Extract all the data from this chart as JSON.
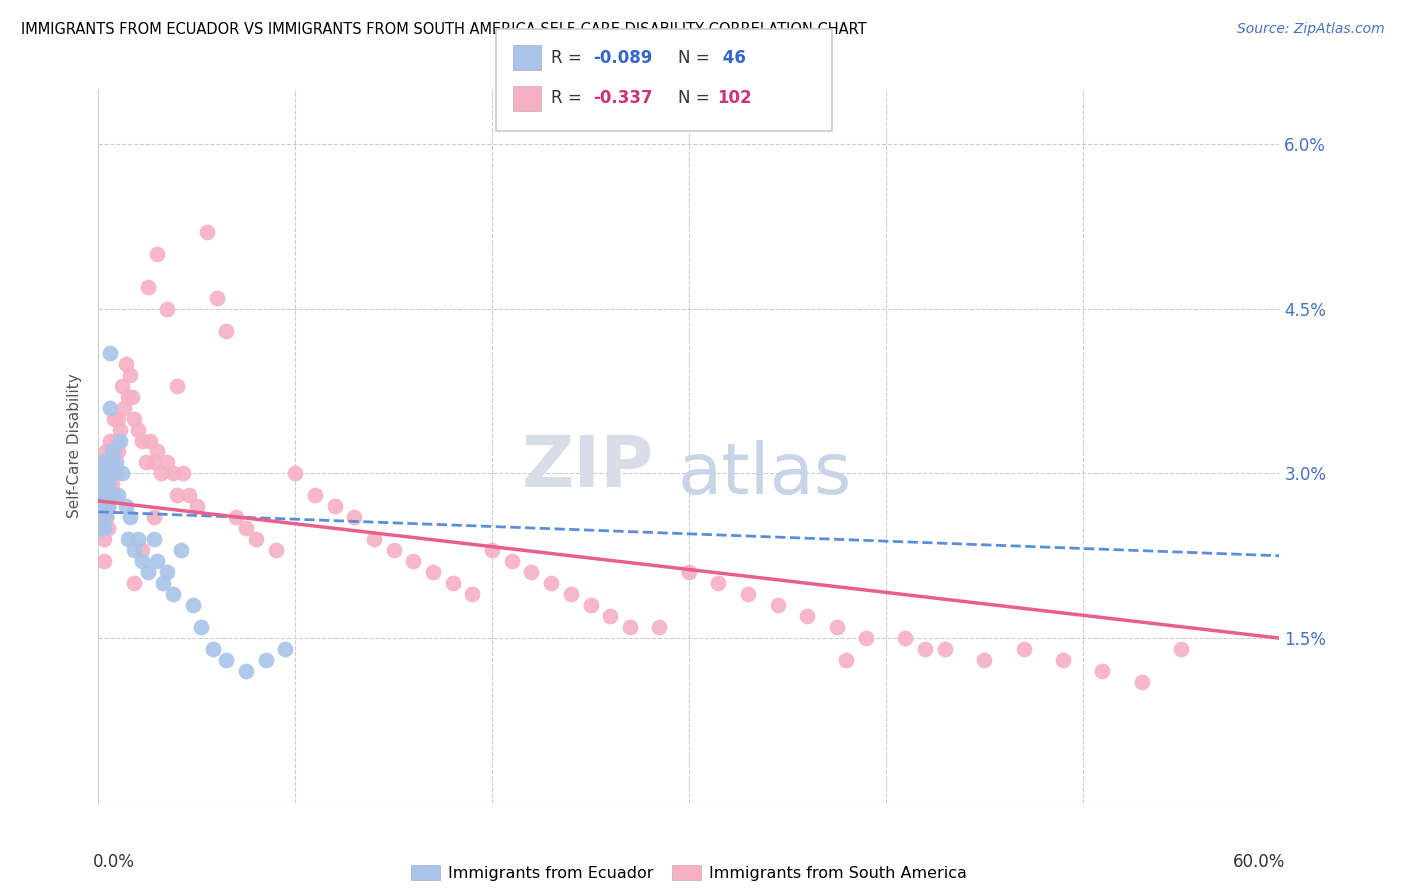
{
  "title": "IMMIGRANTS FROM ECUADOR VS IMMIGRANTS FROM SOUTH AMERICA SELF-CARE DISABILITY CORRELATION CHART",
  "source": "Source: ZipAtlas.com",
  "ylabel": "Self-Care Disability",
  "yticks": [
    0.0,
    0.015,
    0.03,
    0.045,
    0.06
  ],
  "ytick_labels": [
    "",
    "1.5%",
    "3.0%",
    "4.5%",
    "6.0%"
  ],
  "xlim": [
    0.0,
    0.6
  ],
  "ylim": [
    0.0,
    0.065
  ],
  "watermark_zip": "ZIP",
  "watermark_atlas": "atlas",
  "ecuador_color": "#a8c4e8",
  "south_america_color": "#f5b0c5",
  "ecuador_trend_color": "#5b8ed6",
  "south_america_trend_color": "#e8608a",
  "ecuador_label": "Immigrants from Ecuador",
  "sa_label": "Immigrants from South America",
  "legend_r1_prefix": "R = ",
  "legend_r1_val": "-0.089",
  "legend_n1_prefix": "N = ",
  "legend_n1_val": " 46",
  "legend_r2_prefix": "R = ",
  "legend_r2_val": "-0.337",
  "legend_n2_prefix": "N = ",
  "legend_n2_val": "102",
  "ecuador_x": [
    0.001,
    0.001,
    0.002,
    0.002,
    0.002,
    0.002,
    0.003,
    0.003,
    0.003,
    0.003,
    0.004,
    0.004,
    0.004,
    0.005,
    0.005,
    0.005,
    0.006,
    0.006,
    0.007,
    0.007,
    0.008,
    0.008,
    0.009,
    0.01,
    0.011,
    0.012,
    0.014,
    0.015,
    0.016,
    0.018,
    0.02,
    0.022,
    0.025,
    0.028,
    0.03,
    0.033,
    0.035,
    0.038,
    0.042,
    0.048,
    0.052,
    0.058,
    0.065,
    0.075,
    0.085,
    0.095
  ],
  "ecuador_y": [
    0.029,
    0.027,
    0.031,
    0.029,
    0.027,
    0.025,
    0.03,
    0.028,
    0.027,
    0.025,
    0.03,
    0.028,
    0.026,
    0.031,
    0.029,
    0.027,
    0.041,
    0.036,
    0.032,
    0.028,
    0.03,
    0.028,
    0.031,
    0.028,
    0.033,
    0.03,
    0.027,
    0.024,
    0.026,
    0.023,
    0.024,
    0.022,
    0.021,
    0.024,
    0.022,
    0.02,
    0.021,
    0.019,
    0.023,
    0.018,
    0.016,
    0.014,
    0.013,
    0.012,
    0.013,
    0.014
  ],
  "sa_x": [
    0.001,
    0.001,
    0.001,
    0.002,
    0.002,
    0.002,
    0.002,
    0.003,
    0.003,
    0.003,
    0.003,
    0.003,
    0.004,
    0.004,
    0.004,
    0.004,
    0.005,
    0.005,
    0.005,
    0.005,
    0.006,
    0.006,
    0.006,
    0.007,
    0.007,
    0.008,
    0.008,
    0.009,
    0.009,
    0.01,
    0.01,
    0.011,
    0.012,
    0.013,
    0.014,
    0.015,
    0.016,
    0.017,
    0.018,
    0.02,
    0.022,
    0.024,
    0.026,
    0.028,
    0.03,
    0.032,
    0.035,
    0.038,
    0.04,
    0.043,
    0.046,
    0.05,
    0.055,
    0.06,
    0.065,
    0.07,
    0.075,
    0.08,
    0.09,
    0.1,
    0.11,
    0.12,
    0.13,
    0.14,
    0.15,
    0.16,
    0.17,
    0.18,
    0.19,
    0.2,
    0.21,
    0.22,
    0.23,
    0.24,
    0.25,
    0.26,
    0.27,
    0.285,
    0.3,
    0.315,
    0.33,
    0.345,
    0.36,
    0.375,
    0.39,
    0.41,
    0.43,
    0.45,
    0.47,
    0.49,
    0.51,
    0.53,
    0.55,
    0.03,
    0.025,
    0.035,
    0.04,
    0.028,
    0.022,
    0.018,
    0.38,
    0.42
  ],
  "sa_y": [
    0.029,
    0.027,
    0.025,
    0.031,
    0.029,
    0.027,
    0.025,
    0.03,
    0.028,
    0.026,
    0.024,
    0.022,
    0.032,
    0.03,
    0.028,
    0.026,
    0.031,
    0.029,
    0.027,
    0.025,
    0.033,
    0.031,
    0.028,
    0.031,
    0.029,
    0.035,
    0.032,
    0.033,
    0.03,
    0.035,
    0.032,
    0.034,
    0.038,
    0.036,
    0.04,
    0.037,
    0.039,
    0.037,
    0.035,
    0.034,
    0.033,
    0.031,
    0.033,
    0.031,
    0.032,
    0.03,
    0.031,
    0.03,
    0.028,
    0.03,
    0.028,
    0.027,
    0.052,
    0.046,
    0.043,
    0.026,
    0.025,
    0.024,
    0.023,
    0.03,
    0.028,
    0.027,
    0.026,
    0.024,
    0.023,
    0.022,
    0.021,
    0.02,
    0.019,
    0.023,
    0.022,
    0.021,
    0.02,
    0.019,
    0.018,
    0.017,
    0.016,
    0.016,
    0.021,
    0.02,
    0.019,
    0.018,
    0.017,
    0.016,
    0.015,
    0.015,
    0.014,
    0.013,
    0.014,
    0.013,
    0.012,
    0.011,
    0.014,
    0.05,
    0.047,
    0.045,
    0.038,
    0.026,
    0.023,
    0.02,
    0.013,
    0.014
  ]
}
